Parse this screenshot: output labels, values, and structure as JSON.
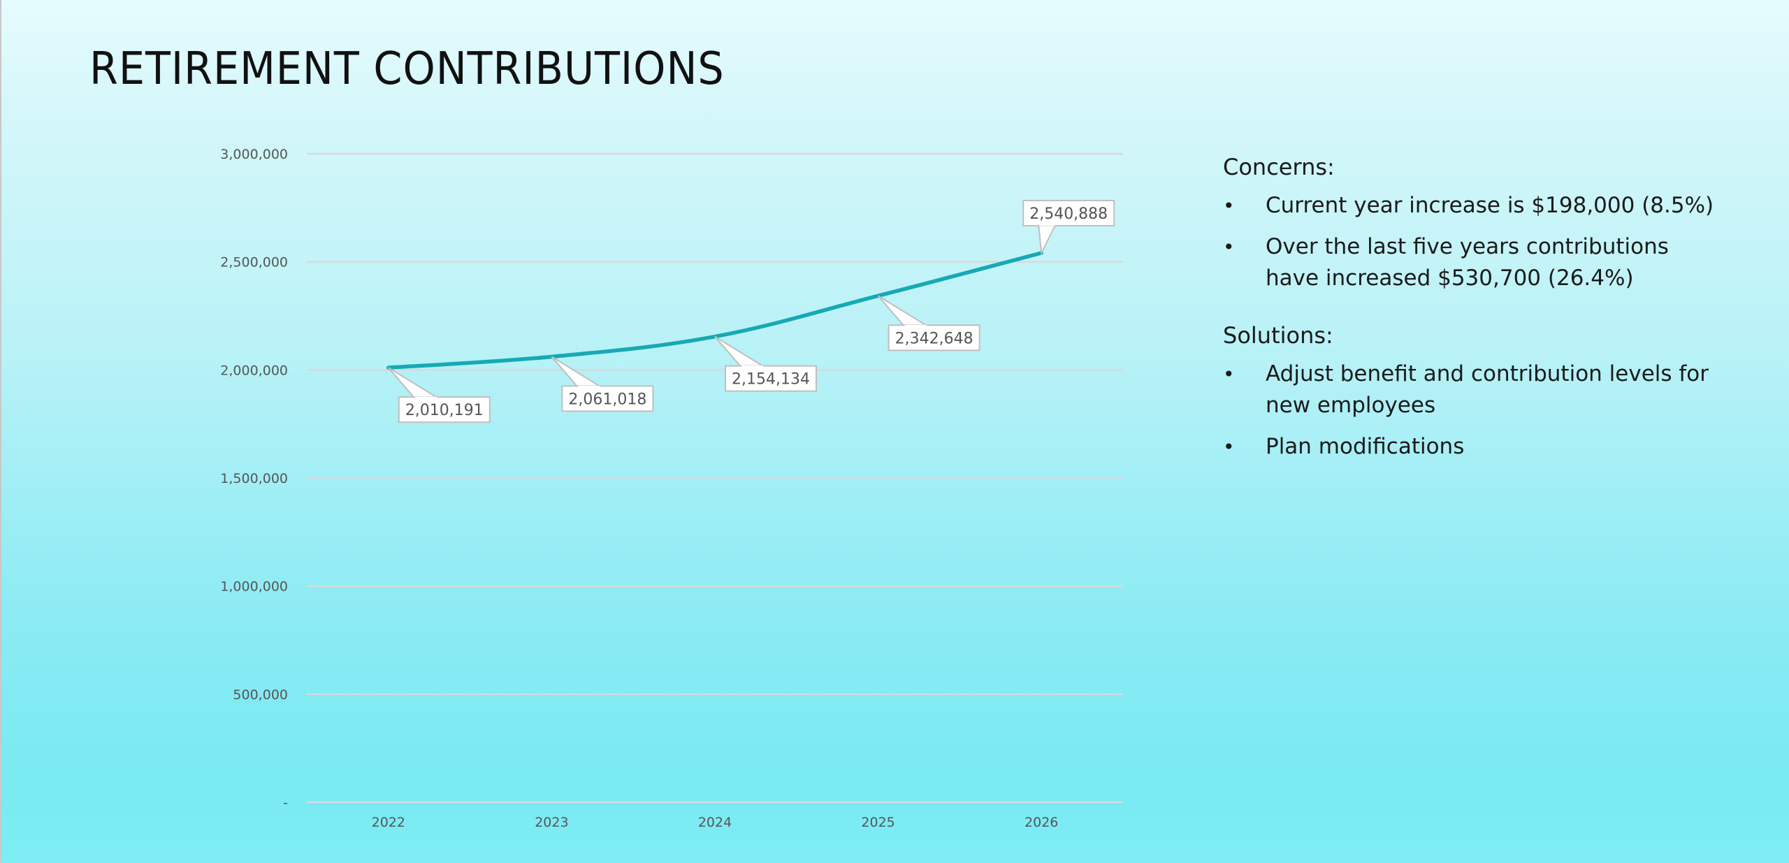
{
  "slide": {
    "title": "RETIREMENT CONTRIBUTIONS"
  },
  "notes": {
    "sections": [
      {
        "heading": "Concerns:",
        "bullets": [
          "Current year increase is $198,000 (8.5%)",
          "Over the last five years contributions have increased $530,700 (26.4%)"
        ]
      },
      {
        "heading": "Solutions:",
        "bullets": [
          "Adjust benefit and contribution levels for new employees",
          "Plan modifications"
        ]
      }
    ],
    "bullet_glyph": "•"
  },
  "colors": {
    "line": "#17a9b5",
    "grid": "#d9d9d9",
    "label_border": "#bfbfbf",
    "label_fill": "#ffffff"
  },
  "chart_data": {
    "type": "line",
    "title": "",
    "xlabel": "",
    "ylabel": "",
    "categories": [
      "2022",
      "2023",
      "2024",
      "2025",
      "2026"
    ],
    "series": [
      {
        "name": "Retirement Contributions",
        "values": [
          2010191,
          2061018,
          2154134,
          2342648,
          2540888
        ],
        "data_labels": [
          "2,010,191",
          "2,061,018",
          "2,154,134",
          "2,342,648",
          "2,540,888"
        ],
        "label_side": [
          "below",
          "below",
          "below",
          "below",
          "above"
        ]
      }
    ],
    "ylim": [
      0,
      3000000
    ],
    "y_ticks": [
      0,
      500000,
      1000000,
      1500000,
      2000000,
      2500000,
      3000000
    ],
    "y_tick_labels": [
      "-",
      "500,000",
      "1,000,000",
      "1,500,000",
      "2,000,000",
      "2,500,000",
      "3,000,000"
    ],
    "grid": true,
    "legend": "none",
    "smooth": true
  }
}
